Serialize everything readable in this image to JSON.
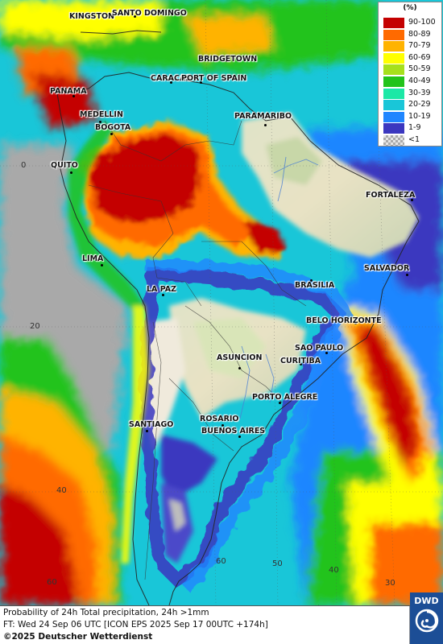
{
  "legend": {
    "title": "(%)",
    "entries": [
      {
        "label": "90-100",
        "color": "#c40000"
      },
      {
        "label": "80-89",
        "color": "#ff6a00"
      },
      {
        "label": "70-79",
        "color": "#ffb300"
      },
      {
        "label": "60-69",
        "color": "#ffff00"
      },
      {
        "label": "50-59",
        "color": "#a6e01c"
      },
      {
        "label": "40-49",
        "color": "#22c31a"
      },
      {
        "label": "30-39",
        "color": "#1ce8a6"
      },
      {
        "label": "20-29",
        "color": "#19c6d8"
      },
      {
        "label": "10-19",
        "color": "#1f86ff"
      },
      {
        "label": "1-9",
        "color": "#3b37bf"
      },
      {
        "label": "<1",
        "color": "#cccccc"
      }
    ]
  },
  "cities": [
    {
      "name": "KINGSTON"
    },
    {
      "name": "SANTO DOMINGO"
    },
    {
      "name": "BRIDGETOWN"
    },
    {
      "name": "CARACAS"
    },
    {
      "name": "PORT OF SPAIN"
    },
    {
      "name": "PANAMA"
    },
    {
      "name": "MEDELLIN"
    },
    {
      "name": "BOGOTA"
    },
    {
      "name": "PARAMARIBO"
    },
    {
      "name": "QUITO"
    },
    {
      "name": "FORTALEZA"
    },
    {
      "name": "LIMA"
    },
    {
      "name": "SALVADOR"
    },
    {
      "name": "BRASILIA"
    },
    {
      "name": "LA PAZ"
    },
    {
      "name": "BELO HORIZONTE"
    },
    {
      "name": "SAO PAULO"
    },
    {
      "name": "ASUNCION"
    },
    {
      "name": "CURITIBA"
    },
    {
      "name": "PORTO ALEGRE"
    },
    {
      "name": "ROSARIO"
    },
    {
      "name": "BUENOS AIRES"
    },
    {
      "name": "SANTIAGO"
    }
  ],
  "coords": [
    {
      "label": "0"
    },
    {
      "label": "20"
    },
    {
      "label": "40"
    },
    {
      "label": "60"
    },
    {
      "label": "60"
    },
    {
      "label": "50"
    },
    {
      "label": "40"
    },
    {
      "label": "30"
    }
  ],
  "footer": {
    "line1": "Probability of 24h Total precipitation, 24h >1mm",
    "line2": "FT: Wed 24 Sep 06 UTC [ICON EPS 2025 Sep 17 00UTC +174h]",
    "line3": "©2025 Deutscher Wetterdienst"
  },
  "logo": {
    "text": "DWD",
    "icon": "dwd-swirl-icon",
    "color": "#1c4e96"
  }
}
